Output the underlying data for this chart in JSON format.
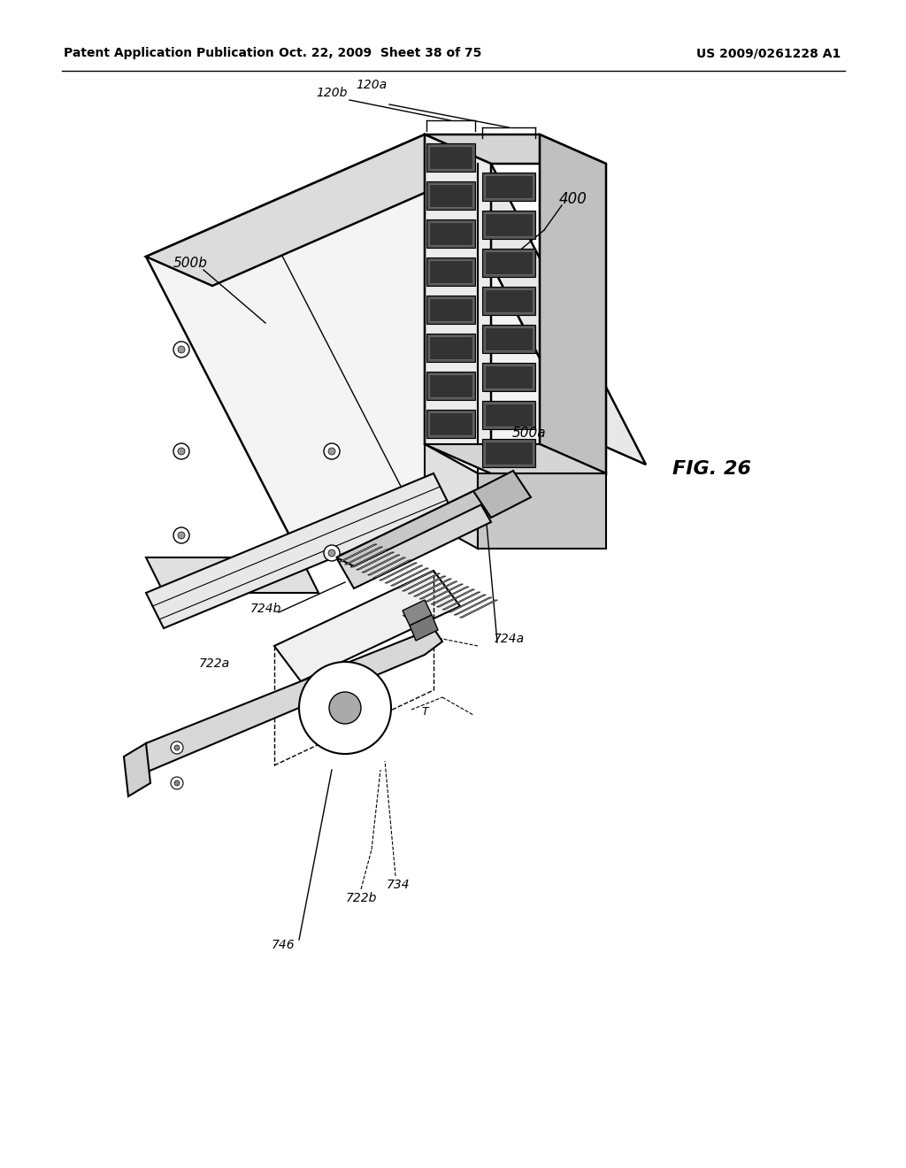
{
  "background_color": "#ffffff",
  "header_left": "Patent Application Publication",
  "header_center": "Oct. 22, 2009  Sheet 38 of 75",
  "header_right": "US 2009/0261228 A1",
  "figure_label": "FIG. 26",
  "line_color": "#000000",
  "fill_light": "#f2f2f2",
  "fill_mid": "#e0e0e0",
  "fill_dark": "#c8c8c8",
  "fill_slot": "#404040"
}
